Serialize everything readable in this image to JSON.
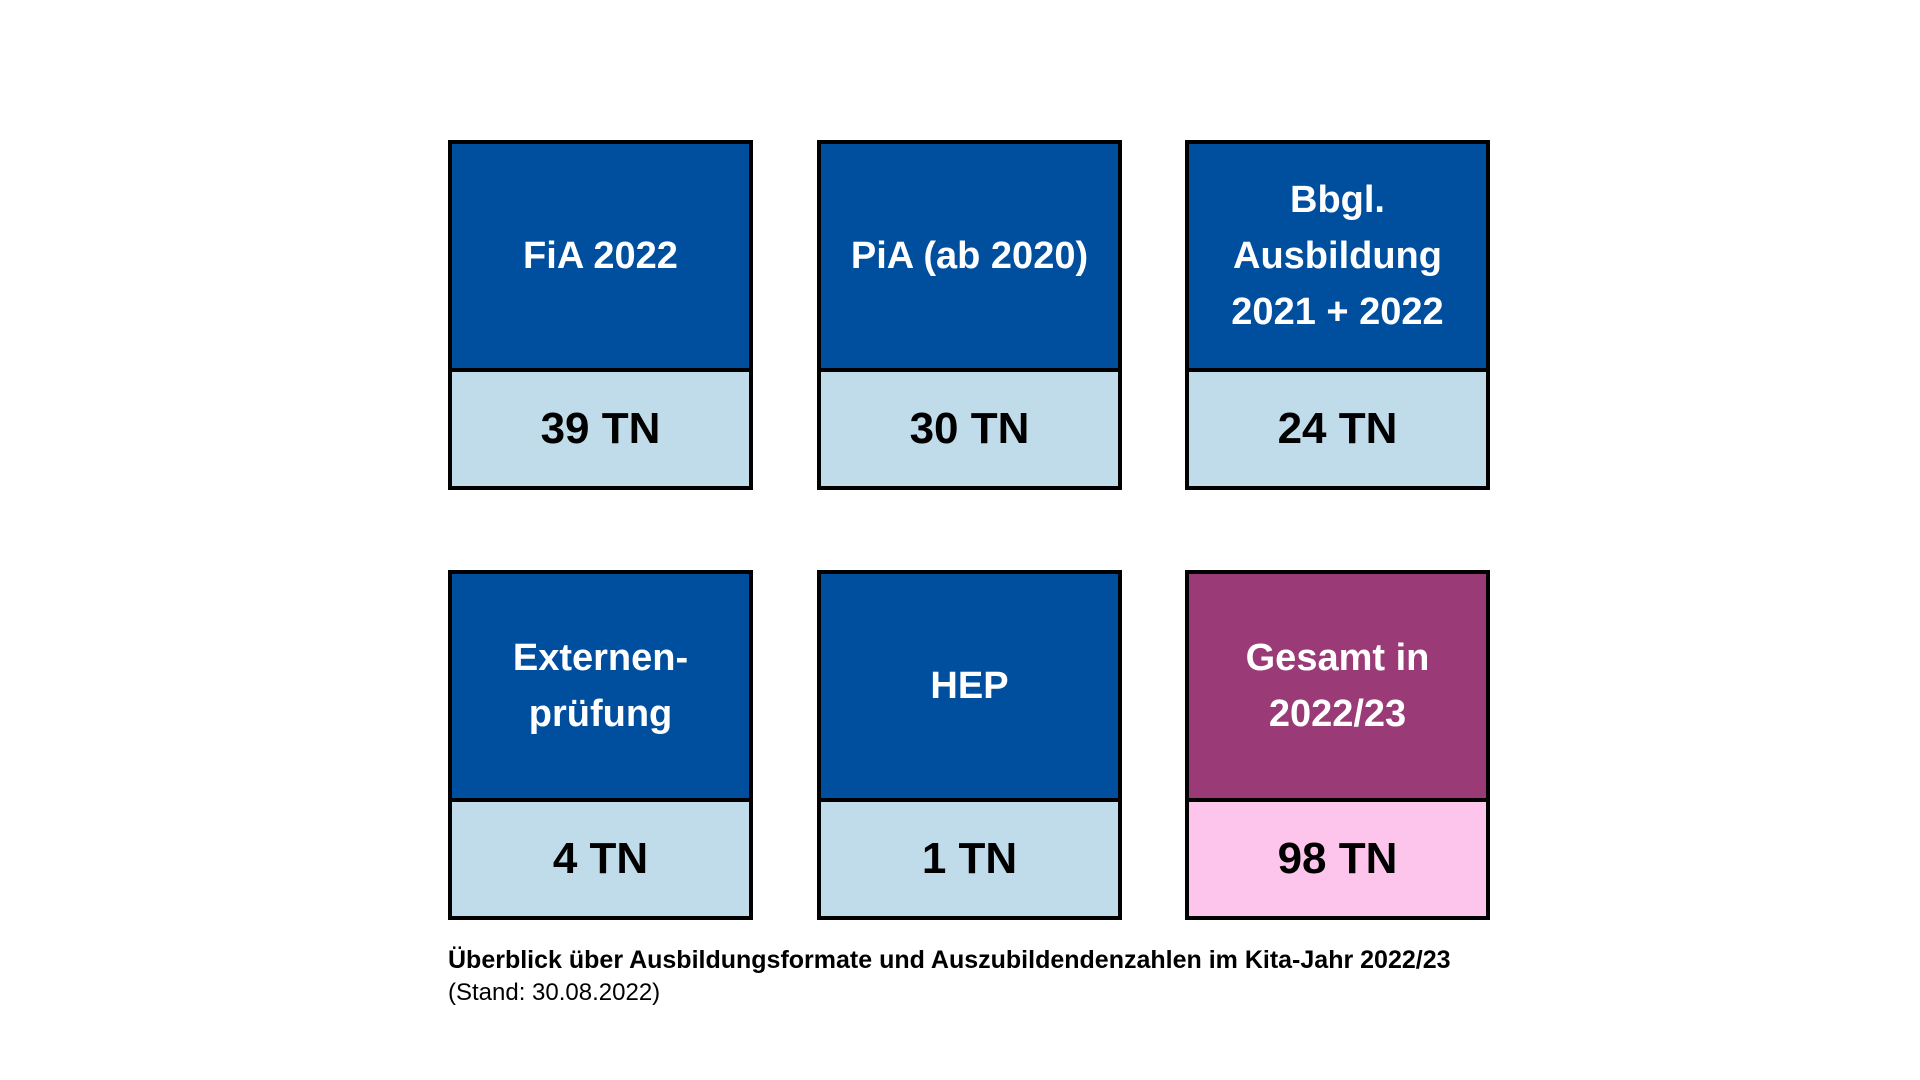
{
  "colors": {
    "header_blue": "#004f9f",
    "value_light_blue": "#c0dbea",
    "header_purple": "#9a3b78",
    "value_pink": "#fdc5ec",
    "border": "#000000"
  },
  "cards": [
    {
      "label": "FiA 2022",
      "value": "39 TN",
      "variant": "blue"
    },
    {
      "label": "PiA (ab 2020)",
      "value": "30 TN",
      "variant": "blue"
    },
    {
      "label": "Bbgl. Ausbildung 2021 + 2022",
      "value": "24 TN",
      "variant": "blue"
    },
    {
      "label": "Externen-prüfung",
      "value": "4 TN",
      "variant": "blue"
    },
    {
      "label": "HEP",
      "value": "1 TN",
      "variant": "blue"
    },
    {
      "label": "Gesamt in 2022/23",
      "value": "98 TN",
      "variant": "total"
    }
  ],
  "caption": {
    "title": "Überblick über Ausbildungsformate und Auszubildendenzahlen im Kita-Jahr 2022/23",
    "subtitle": "(Stand: 30.08.2022)"
  }
}
